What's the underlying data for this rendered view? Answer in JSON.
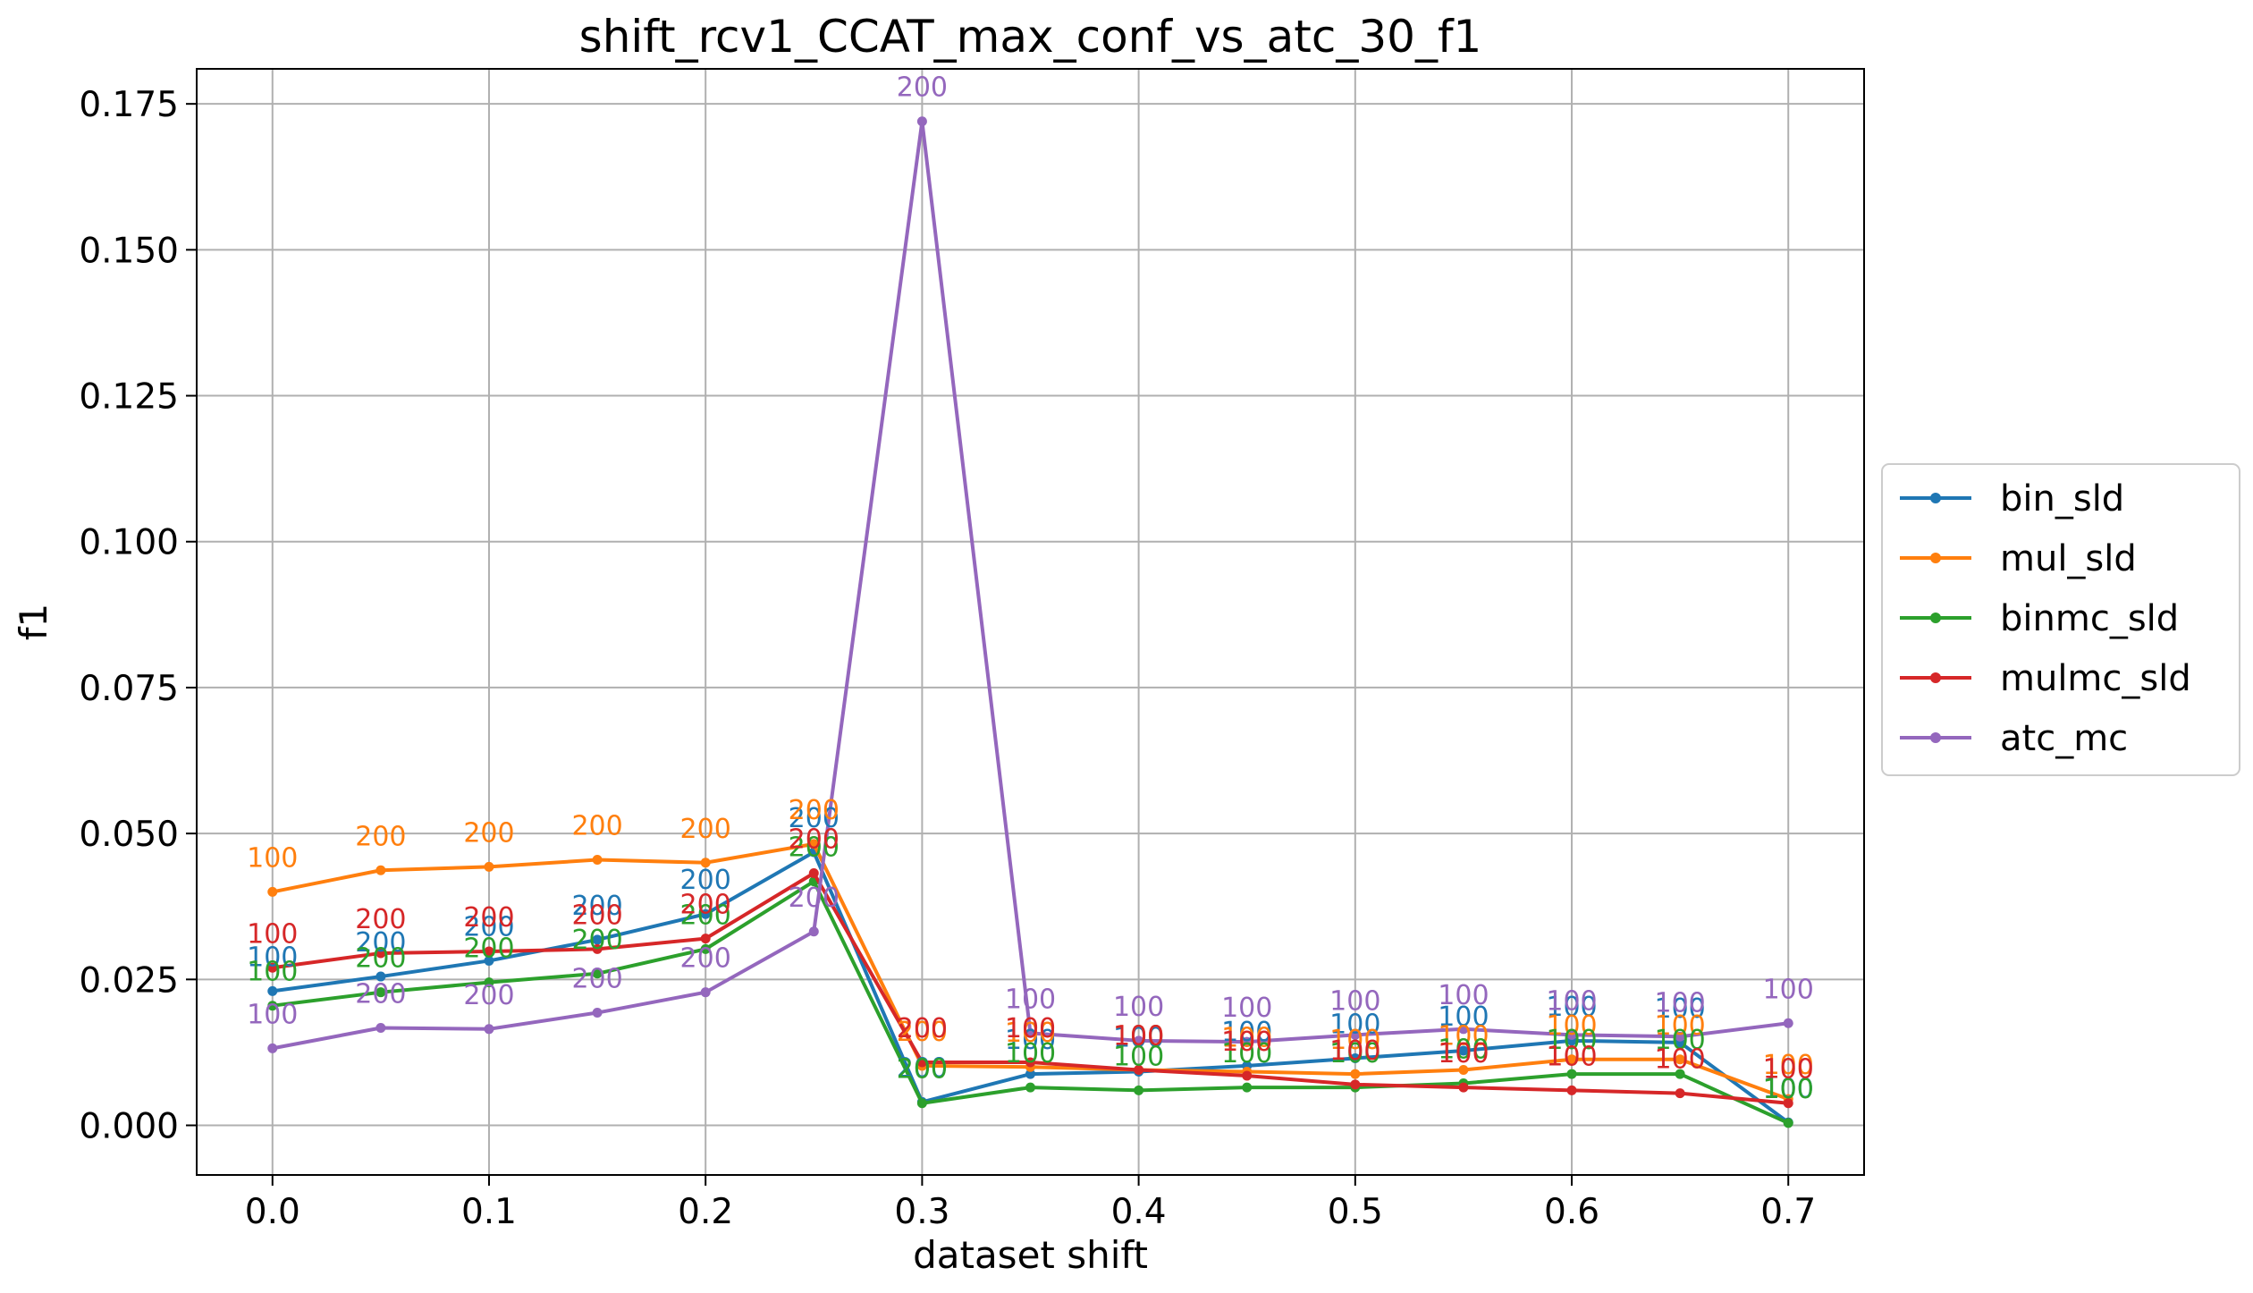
{
  "chart_data": {
    "type": "line",
    "title": "shift_rcv1_CCAT_max_conf_vs_atc_30_f1",
    "xlabel": "dataset shift",
    "ylabel": "f1",
    "x": [
      0.0,
      0.05,
      0.1,
      0.15,
      0.2,
      0.25,
      0.3,
      0.35,
      0.4,
      0.45,
      0.5,
      0.55,
      0.6,
      0.65,
      0.7
    ],
    "xlim": [
      -0.035,
      0.735
    ],
    "ylim": [
      -0.0085,
      0.181
    ],
    "xticks": [
      0.0,
      0.1,
      0.2,
      0.3,
      0.4,
      0.5,
      0.6,
      0.7
    ],
    "xtick_labels": [
      "0.0",
      "0.1",
      "0.2",
      "0.3",
      "0.4",
      "0.5",
      "0.6",
      "0.7"
    ],
    "yticks": [
      0.0,
      0.025,
      0.05,
      0.075,
      0.1,
      0.125,
      0.15,
      0.175
    ],
    "ytick_labels": [
      "0.000",
      "0.025",
      "0.050",
      "0.075",
      "0.100",
      "0.125",
      "0.150",
      "0.175"
    ],
    "grid": true,
    "legend_position": "right-outside",
    "series": [
      {
        "name": "bin_sld",
        "color": "#1f77b4",
        "values": [
          0.023,
          0.0255,
          0.0282,
          0.0318,
          0.0362,
          0.0468,
          0.004,
          0.0088,
          0.0092,
          0.0102,
          0.0115,
          0.0128,
          0.0145,
          0.0142,
          0.0005
        ],
        "labels": [
          "100",
          "200",
          "200",
          "200",
          "200",
          "200",
          "200",
          "100",
          "100",
          "100",
          "100",
          "100",
          "100",
          "100",
          "100"
        ]
      },
      {
        "name": "mul_sld",
        "color": "#ff7f0e",
        "values": [
          0.04,
          0.0437,
          0.0443,
          0.0455,
          0.045,
          0.0482,
          0.0102,
          0.01,
          0.0095,
          0.0092,
          0.0088,
          0.0095,
          0.0113,
          0.0113,
          0.0045
        ],
        "labels": [
          "100",
          "200",
          "200",
          "200",
          "200",
          "200",
          "200",
          "100",
          "100",
          "100",
          "100",
          "100",
          "100",
          "100",
          "100"
        ]
      },
      {
        "name": "binmc_sld",
        "color": "#2ca02c",
        "values": [
          0.0205,
          0.0228,
          0.0245,
          0.026,
          0.0302,
          0.0418,
          0.0038,
          0.0065,
          0.006,
          0.0065,
          0.0065,
          0.0072,
          0.0088,
          0.0088,
          0.0004
        ],
        "labels": [
          "100",
          "200",
          "200",
          "200",
          "200",
          "200",
          "200",
          "100",
          "100",
          "100",
          "100",
          "100",
          "100",
          "100",
          "100"
        ]
      },
      {
        "name": "mulmc_sld",
        "color": "#d62728",
        "values": [
          0.027,
          0.0295,
          0.0298,
          0.0302,
          0.032,
          0.0432,
          0.0108,
          0.0108,
          0.0095,
          0.0085,
          0.007,
          0.0065,
          0.006,
          0.0055,
          0.0038
        ],
        "labels": [
          "100",
          "200",
          "200",
          "200",
          "200",
          "200",
          "200",
          "100",
          "100",
          "100",
          "100",
          "100",
          "100",
          "100",
          "100"
        ]
      },
      {
        "name": "atc_mc",
        "color": "#9467bd",
        "values": [
          0.0132,
          0.0167,
          0.0165,
          0.0193,
          0.0228,
          0.0332,
          0.172,
          0.0158,
          0.0145,
          0.0143,
          0.0155,
          0.0165,
          0.0155,
          0.0152,
          0.0175
        ],
        "labels": [
          "100",
          "200",
          "200",
          "200",
          "200",
          "200",
          "200",
          "100",
          "100",
          "100",
          "100",
          "100",
          "100",
          "100",
          "100"
        ]
      }
    ]
  }
}
